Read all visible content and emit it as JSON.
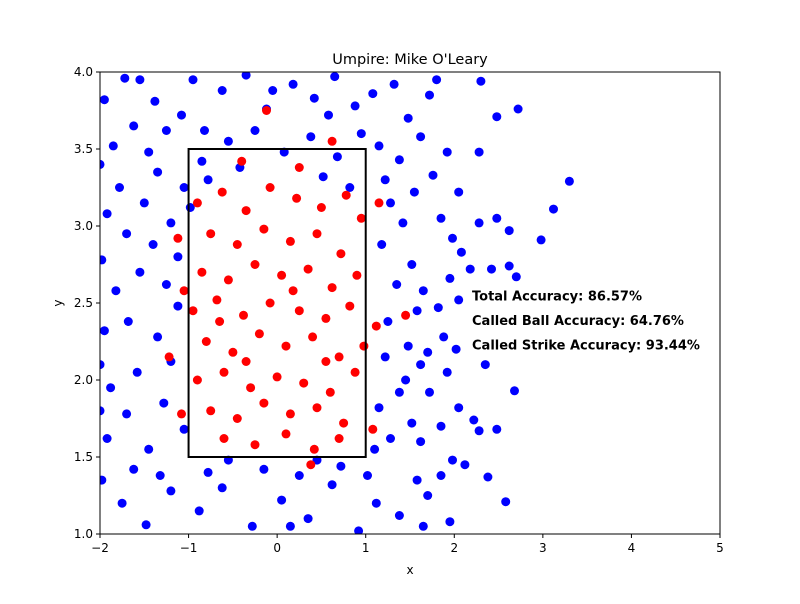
{
  "chart_data": {
    "type": "scatter",
    "title": "Umpire: Mike O'Leary",
    "xlabel": "x",
    "ylabel": "y",
    "xlim": [
      -2,
      5
    ],
    "ylim": [
      1.0,
      4.0
    ],
    "x_ticks": [
      "−2",
      "−1",
      "0",
      "1",
      "2",
      "3",
      "4",
      "5"
    ],
    "y_ticks": [
      "1.0",
      "1.5",
      "2.0",
      "2.5",
      "3.0",
      "3.5",
      "4.0"
    ],
    "strike_zone": {
      "x": [
        -1,
        1
      ],
      "y": [
        1.5,
        3.5
      ]
    },
    "annotations": [
      {
        "text": "Total Accuracy: 86.57%",
        "x": 2.2,
        "y": 2.55
      },
      {
        "text": "Called Ball Accuracy: 64.76%",
        "x": 2.2,
        "y": 2.39
      },
      {
        "text": "Called Strike Accuracy: 93.44%",
        "x": 2.2,
        "y": 2.23
      }
    ],
    "colors": {
      "ball": "#0000ff",
      "strike": "#ff0000",
      "zone": "#000000"
    },
    "series": [
      {
        "color": "#0000ff",
        "points": [
          [
            -1.95,
            3.82
          ],
          [
            -1.72,
            3.96
          ],
          [
            -1.38,
            3.81
          ],
          [
            -1.62,
            3.65
          ],
          [
            -1.85,
            3.52
          ],
          [
            -1.45,
            3.48
          ],
          [
            -1.25,
            3.62
          ],
          [
            -1.08,
            3.72
          ],
          [
            -0.95,
            3.95
          ],
          [
            -0.62,
            3.88
          ],
          [
            -0.35,
            3.98
          ],
          [
            -0.12,
            3.76
          ],
          [
            0.18,
            3.92
          ],
          [
            0.42,
            3.83
          ],
          [
            0.65,
            3.97
          ],
          [
            0.88,
            3.78
          ],
          [
            1.08,
            3.86
          ],
          [
            1.32,
            3.92
          ],
          [
            1.48,
            3.7
          ],
          [
            1.62,
            3.58
          ],
          [
            1.92,
            3.48
          ],
          [
            1.76,
            3.33
          ],
          [
            1.55,
            3.22
          ],
          [
            1.38,
            3.43
          ],
          [
            1.22,
            3.3
          ],
          [
            2.05,
            3.22
          ],
          [
            2.28,
            3.48
          ],
          [
            2.48,
            3.71
          ],
          [
            2.72,
            3.76
          ],
          [
            2.3,
            3.94
          ],
          [
            3.3,
            3.29
          ],
          [
            3.12,
            3.11
          ],
          [
            2.62,
            2.97
          ],
          [
            2.98,
            2.91
          ],
          [
            2.28,
            3.02
          ],
          [
            2.48,
            3.05
          ],
          [
            2.08,
            2.83
          ],
          [
            1.95,
            2.66
          ],
          [
            2.18,
            2.72
          ],
          [
            2.42,
            2.72
          ],
          [
            2.7,
            2.67
          ],
          [
            2.62,
            2.74
          ],
          [
            2.05,
            2.52
          ],
          [
            1.82,
            2.47
          ],
          [
            1.65,
            2.58
          ],
          [
            1.88,
            2.28
          ],
          [
            2.02,
            2.2
          ],
          [
            2.35,
            2.1
          ],
          [
            1.62,
            2.1
          ],
          [
            1.45,
            2.0
          ],
          [
            1.72,
            1.92
          ],
          [
            2.68,
            1.93
          ],
          [
            2.05,
            1.82
          ],
          [
            1.85,
            1.7
          ],
          [
            2.22,
            1.74
          ],
          [
            1.62,
            1.6
          ],
          [
            2.28,
            1.67
          ],
          [
            2.48,
            1.68
          ],
          [
            1.98,
            1.48
          ],
          [
            2.38,
            1.37
          ],
          [
            2.12,
            1.45
          ],
          [
            1.85,
            1.38
          ],
          [
            2.58,
            1.21
          ],
          [
            1.7,
            1.25
          ],
          [
            1.38,
            1.12
          ],
          [
            1.65,
            1.05
          ],
          [
            1.95,
            1.08
          ],
          [
            -1.98,
            1.35
          ],
          [
            -1.75,
            1.2
          ],
          [
            -1.48,
            1.06
          ],
          [
            -1.2,
            1.28
          ],
          [
            -0.88,
            1.15
          ],
          [
            -0.62,
            1.3
          ],
          [
            -0.28,
            1.05
          ],
          [
            0.05,
            1.22
          ],
          [
            0.35,
            1.1
          ],
          [
            0.62,
            1.32
          ],
          [
            0.92,
            1.02
          ],
          [
            1.12,
            1.2
          ],
          [
            -0.15,
            1.42
          ],
          [
            0.25,
            1.38
          ],
          [
            0.72,
            1.44
          ],
          [
            -0.55,
            1.48
          ],
          [
            -1.92,
            1.62
          ],
          [
            -1.7,
            1.78
          ],
          [
            -1.45,
            1.55
          ],
          [
            -1.28,
            1.85
          ],
          [
            -1.05,
            1.68
          ],
          [
            -1.88,
            1.95
          ],
          [
            -1.58,
            2.05
          ],
          [
            -1.2,
            2.12
          ],
          [
            -1.95,
            2.32
          ],
          [
            -1.68,
            2.38
          ],
          [
            -1.35,
            2.28
          ],
          [
            -1.12,
            2.48
          ],
          [
            -1.82,
            2.58
          ],
          [
            -1.55,
            2.7
          ],
          [
            -1.25,
            2.62
          ],
          [
            -1.98,
            2.78
          ],
          [
            -1.4,
            2.88
          ],
          [
            -1.7,
            2.95
          ],
          [
            -1.12,
            2.8
          ],
          [
            -1.92,
            3.08
          ],
          [
            -1.5,
            3.15
          ],
          [
            -1.2,
            3.02
          ],
          [
            -1.78,
            3.25
          ],
          [
            -1.35,
            3.35
          ],
          [
            -1.05,
            3.25
          ],
          [
            -0.85,
            3.42
          ],
          [
            -0.55,
            3.55
          ],
          [
            -0.25,
            3.62
          ],
          [
            0.08,
            3.48
          ],
          [
            0.38,
            3.58
          ],
          [
            0.68,
            3.45
          ],
          [
            0.95,
            3.6
          ],
          [
            1.15,
            3.52
          ],
          [
            1.28,
            3.15
          ],
          [
            1.42,
            3.02
          ],
          [
            1.18,
            2.88
          ],
          [
            1.52,
            2.75
          ],
          [
            1.35,
            2.62
          ],
          [
            1.58,
            2.45
          ],
          [
            1.25,
            2.38
          ],
          [
            1.48,
            2.22
          ],
          [
            1.22,
            2.15
          ],
          [
            1.38,
            1.92
          ],
          [
            1.15,
            1.82
          ],
          [
            1.52,
            1.72
          ],
          [
            1.28,
            1.62
          ],
          [
            1.1,
            1.55
          ],
          [
            -0.98,
            3.12
          ],
          [
            -0.78,
            3.3
          ],
          [
            -0.42,
            3.38
          ],
          [
            0.52,
            3.32
          ],
          [
            0.82,
            3.25
          ],
          [
            -1.55,
            3.95
          ],
          [
            -0.82,
            3.62
          ],
          [
            -0.05,
            3.88
          ],
          [
            0.58,
            3.72
          ],
          [
            1.72,
            3.85
          ],
          [
            1.85,
            3.05
          ],
          [
            1.98,
            2.92
          ],
          [
            1.7,
            2.18
          ],
          [
            1.92,
            2.05
          ],
          [
            1.58,
            1.35
          ],
          [
            -1.62,
            1.42
          ],
          [
            -1.32,
            1.38
          ],
          [
            -0.78,
            1.4
          ],
          [
            0.45,
            1.48
          ],
          [
            1.02,
            1.38
          ],
          [
            -2.0,
            3.4
          ],
          [
            -2.0,
            2.1
          ],
          [
            -2.0,
            1.8
          ],
          [
            1.8,
            3.95
          ],
          [
            0.15,
            1.05
          ]
        ]
      },
      {
        "color": "#ff0000",
        "points": [
          [
            -0.9,
            3.15
          ],
          [
            -0.62,
            3.22
          ],
          [
            -0.35,
            3.1
          ],
          [
            -0.08,
            3.25
          ],
          [
            0.22,
            3.18
          ],
          [
            0.5,
            3.12
          ],
          [
            0.78,
            3.2
          ],
          [
            0.95,
            3.05
          ],
          [
            -0.75,
            2.95
          ],
          [
            -0.45,
            2.88
          ],
          [
            -0.15,
            2.98
          ],
          [
            0.15,
            2.9
          ],
          [
            0.45,
            2.95
          ],
          [
            0.72,
            2.82
          ],
          [
            -0.85,
            2.7
          ],
          [
            -0.55,
            2.65
          ],
          [
            -0.25,
            2.75
          ],
          [
            0.05,
            2.68
          ],
          [
            0.35,
            2.72
          ],
          [
            0.62,
            2.6
          ],
          [
            0.9,
            2.68
          ],
          [
            -0.95,
            2.45
          ],
          [
            -0.68,
            2.52
          ],
          [
            -0.38,
            2.42
          ],
          [
            -0.08,
            2.5
          ],
          [
            0.25,
            2.45
          ],
          [
            0.55,
            2.4
          ],
          [
            0.82,
            2.48
          ],
          [
            -0.8,
            2.25
          ],
          [
            -0.5,
            2.18
          ],
          [
            -0.2,
            2.3
          ],
          [
            0.1,
            2.22
          ],
          [
            0.4,
            2.28
          ],
          [
            0.7,
            2.15
          ],
          [
            0.98,
            2.22
          ],
          [
            -0.9,
            2.0
          ],
          [
            -0.6,
            2.05
          ],
          [
            -0.3,
            1.95
          ],
          [
            0.0,
            2.02
          ],
          [
            0.3,
            1.98
          ],
          [
            0.6,
            1.92
          ],
          [
            0.88,
            2.05
          ],
          [
            -0.75,
            1.8
          ],
          [
            -0.45,
            1.75
          ],
          [
            -0.15,
            1.85
          ],
          [
            0.15,
            1.78
          ],
          [
            0.45,
            1.82
          ],
          [
            0.75,
            1.72
          ],
          [
            -0.6,
            1.62
          ],
          [
            -0.25,
            1.58
          ],
          [
            0.1,
            1.65
          ],
          [
            0.42,
            1.55
          ],
          [
            0.7,
            1.62
          ],
          [
            -0.12,
            3.75
          ],
          [
            0.62,
            3.55
          ],
          [
            1.15,
            3.15
          ],
          [
            1.12,
            2.35
          ],
          [
            1.45,
            2.42
          ],
          [
            1.08,
            1.68
          ],
          [
            -1.12,
            2.92
          ],
          [
            -1.05,
            2.58
          ],
          [
            -1.22,
            2.15
          ],
          [
            -1.08,
            1.78
          ],
          [
            0.38,
            1.45
          ],
          [
            -0.4,
            3.42
          ],
          [
            0.25,
            3.38
          ],
          [
            -0.65,
            2.38
          ],
          [
            0.18,
            2.58
          ],
          [
            0.55,
            2.12
          ],
          [
            -0.35,
            2.12
          ]
        ]
      }
    ]
  }
}
